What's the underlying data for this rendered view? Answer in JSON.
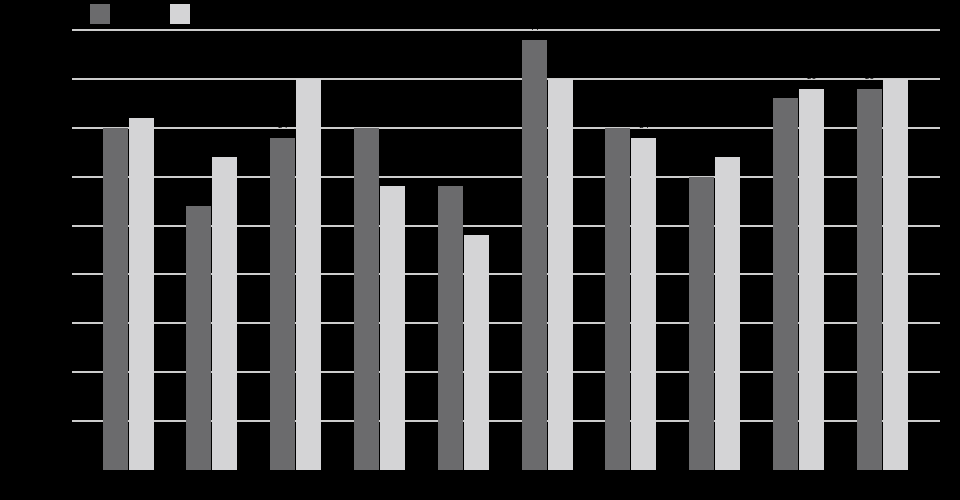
{
  "background_color": "#000000",
  "text_color": "#000000",
  "legend": {
    "items": [
      {
        "name": "series-dark",
        "swatch_color": "#6b6b6d",
        "label": ""
      },
      {
        "name": "series-light",
        "swatch_color": "#d4d4d6",
        "label": ""
      }
    ]
  },
  "chart_data": {
    "type": "bar",
    "grouped": true,
    "title": "",
    "xlabel": "",
    "ylabel": "",
    "n_groups": 10,
    "categories": [
      "",
      "",
      "",
      "",
      "",
      "",
      "",
      "",
      "",
      ""
    ],
    "series": [
      {
        "name": "dark-gray-series",
        "color": "#6b6b6d",
        "values": [
          35,
          27,
          34,
          35,
          29,
          44,
          35,
          30,
          38,
          39
        ]
      },
      {
        "name": "light-gray-series",
        "color": "#d4d4d6",
        "values": [
          36,
          32,
          40,
          29,
          24,
          40,
          34,
          32,
          39,
          40
        ]
      }
    ],
    "ylim": [
      0,
      45
    ],
    "gridline_values": [
      5,
      10,
      15,
      20,
      25,
      30,
      35,
      40,
      45
    ],
    "gridline_color": "#cccccc",
    "grid": true,
    "legend_position": "top-left",
    "data_labels_color": "#000000",
    "axis_labels_visible": false
  }
}
